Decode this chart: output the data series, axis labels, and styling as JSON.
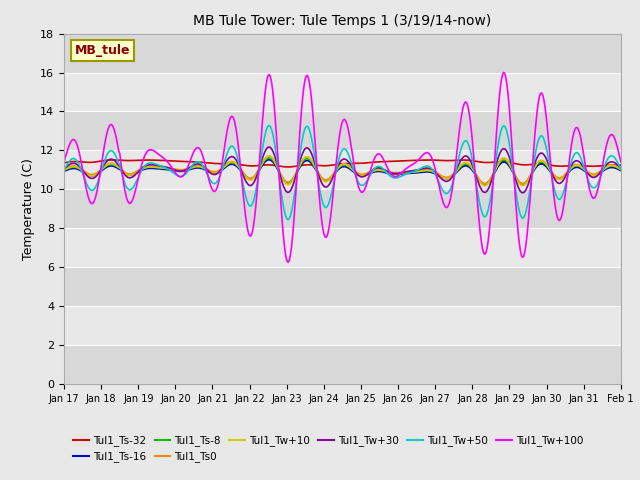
{
  "title": "MB Tule Tower: Tule Temps 1 (3/19/14-now)",
  "ylabel": "Temperature (C)",
  "ylim": [
    0,
    18
  ],
  "yticks": [
    0,
    2,
    4,
    6,
    8,
    10,
    12,
    14,
    16,
    18
  ],
  "xtick_labels": [
    "Jan 17",
    "Jan 18",
    "Jan 19",
    "Jan 20",
    "Jan 21",
    "Jan 22",
    "Jan 23",
    "Jan 24",
    "Jan 25",
    "Jan 26",
    "Jan 27",
    "Jan 28",
    "Jan 29",
    "Jan 30",
    "Jan 31",
    "Feb 1"
  ],
  "plot_bg_light": "#e8e8e8",
  "plot_bg_dark": "#d0d0d0",
  "grid_color": "#ffffff",
  "series_colors": {
    "Tul1_Ts-32": "#cc0000",
    "Tul1_Ts-16": "#0000cc",
    "Tul1_Ts-8": "#00bb00",
    "Tul1_Ts0": "#ff8800",
    "Tul1_Tw+10": "#cccc00",
    "Tul1_Tw+30": "#880099",
    "Tul1_Tw+50": "#00cccc",
    "Tul1_Tw+100": "#ff00ff"
  },
  "legend_box_color": "#ffffcc",
  "legend_box_edge_color": "#999900",
  "legend_box_text": "MB_tule",
  "legend_box_text_color": "#880000"
}
